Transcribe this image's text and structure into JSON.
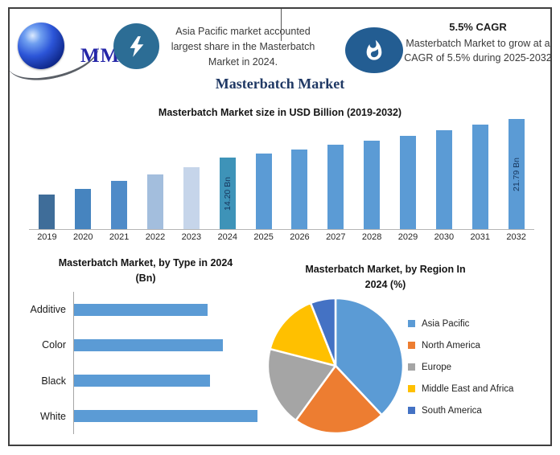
{
  "page": {
    "border_color": "#3f3f3f",
    "background": "#ffffff"
  },
  "header": {
    "logo": {
      "text": "MMR"
    },
    "left_callout": "Asia Pacific market accounted largest share in the Masterbatch Market in 2024.",
    "cagr": {
      "title": "5.5% CAGR",
      "body": "Masterbatch Market to grow at a CAGR of 5.5% during 2025-2032"
    }
  },
  "main_title": "Masterbatch Market",
  "chart_data": [
    {
      "type": "bar",
      "title": "Masterbatch Market size in USD Billion (2019-2032)",
      "unit": "USD Billion",
      "categories": [
        "2019",
        "2020",
        "2021",
        "2022",
        "2023",
        "2024",
        "2025",
        "2026",
        "2027",
        "2028",
        "2029",
        "2030",
        "2031",
        "2032"
      ],
      "values": [
        6.9,
        8.0,
        9.5,
        10.9,
        12.3,
        14.2,
        14.98,
        15.8,
        16.67,
        17.59,
        18.55,
        19.57,
        20.65,
        21.79
      ],
      "labeled_values": {
        "2024": "14.20 Bn",
        "2032": "21.79 Bn"
      },
      "bar_colors": [
        "#3f6d99",
        "#4684bf",
        "#4f8bc8",
        "#a3bedd",
        "#c6d5ea",
        "#3e93b8",
        "#5b9bd5",
        "#5b9bd5",
        "#5b9bd5",
        "#5b9bd5",
        "#5b9bd5",
        "#5b9bd5",
        "#5b9bd5",
        "#5b9bd5"
      ],
      "data_label_color": "#17375e",
      "ylim": [
        0,
        22
      ],
      "grid": false,
      "xlabel": "",
      "ylabel": ""
    },
    {
      "type": "bar",
      "orientation": "horizontal",
      "title": "Masterbatch Market, by Type in 2024 (Bn)",
      "title_lines": [
        "Masterbatch Market, by Type in 2024",
        "(Bn)"
      ],
      "categories": [
        "Additive",
        "Color",
        "Black",
        "White"
      ],
      "values_pct_of_max": [
        73,
        81,
        74,
        100
      ],
      "bar_color": "#5b9bd5",
      "grid": false
    },
    {
      "type": "pie",
      "title": "Masterbatch Market, by Region In 2024 (%)",
      "title_lines": [
        "Masterbatch Market, by Region In",
        "2024 (%)"
      ],
      "labels": [
        "Asia Pacific",
        "North America",
        "Europe",
        "Middle East and Africa",
        "South America"
      ],
      "values": [
        38,
        22,
        19,
        15,
        6
      ],
      "colors": [
        "#5b9bd5",
        "#ed7d31",
        "#a5a5a5",
        "#ffc000",
        "#4472c4"
      ],
      "legend_position": "right",
      "start_angle_deg": 0
    }
  ]
}
